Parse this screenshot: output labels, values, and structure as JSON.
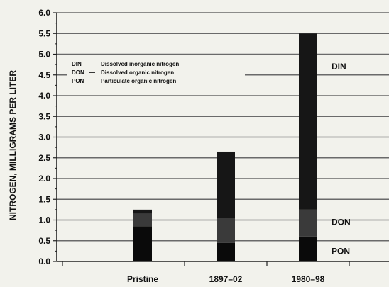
{
  "chart_data": {
    "type": "bar",
    "stacked": true,
    "ylabel": "NITROGEN, MILLIGRAMS PER LITER",
    "xlabel": "",
    "title": "",
    "ylim": [
      0,
      6
    ],
    "y_ticks": [
      "0.0",
      "0.5",
      "1.0",
      "1.5",
      "2.0",
      "2.5",
      "3.0",
      "3.5",
      "4.0",
      "4.5",
      "5.0",
      "5.5",
      "6.0"
    ],
    "grid": "horizontal",
    "categories": [
      "Pristine",
      "1897–02",
      "1980–98"
    ],
    "series": [
      {
        "name": "PON",
        "color": "#0a0a0a",
        "values": [
          0.85,
          0.45,
          0.6
        ]
      },
      {
        "name": "DON",
        "color": "#3a3a3a",
        "values": [
          0.3,
          0.6,
          0.65
        ]
      },
      {
        "name": "DIN",
        "color": "#161616",
        "values": [
          0.1,
          1.6,
          4.25
        ]
      }
    ],
    "legend": {
      "placement": "top-left",
      "entries": [
        {
          "abbr": "DIN",
          "sep": "—",
          "text": "Dissolved inorganic nitrogen"
        },
        {
          "abbr": "DON",
          "sep": "—",
          "text": "Dissolved organic nitrogen"
        },
        {
          "abbr": "PON",
          "sep": "—",
          "text": "Particulate organic nitrogen"
        }
      ]
    },
    "annotations": [
      {
        "text": "DIN",
        "y": 4.7
      },
      {
        "text": "DON",
        "y": 0.95
      },
      {
        "text": "PON",
        "y": 0.25
      }
    ]
  }
}
